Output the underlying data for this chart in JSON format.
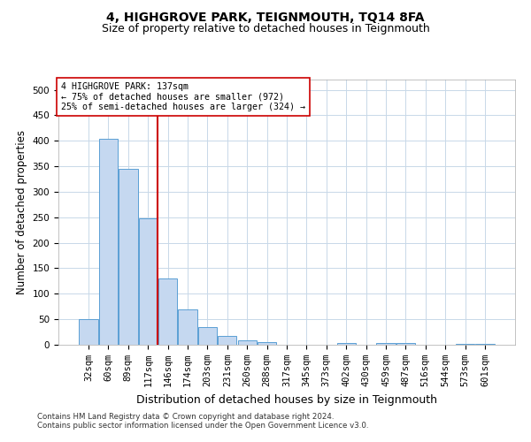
{
  "title": "4, HIGHGROVE PARK, TEIGNMOUTH, TQ14 8FA",
  "subtitle": "Size of property relative to detached houses in Teignmouth",
  "xlabel": "Distribution of detached houses by size in Teignmouth",
  "ylabel": "Number of detached properties",
  "footer_line1": "Contains HM Land Registry data © Crown copyright and database right 2024.",
  "footer_line2": "Contains public sector information licensed under the Open Government Licence v3.0.",
  "categories": [
    "32sqm",
    "60sqm",
    "89sqm",
    "117sqm",
    "146sqm",
    "174sqm",
    "203sqm",
    "231sqm",
    "260sqm",
    "288sqm",
    "317sqm",
    "345sqm",
    "373sqm",
    "402sqm",
    "430sqm",
    "459sqm",
    "487sqm",
    "516sqm",
    "544sqm",
    "573sqm",
    "601sqm"
  ],
  "values": [
    50,
    403,
    345,
    248,
    130,
    70,
    35,
    17,
    8,
    5,
    0,
    0,
    0,
    3,
    0,
    4,
    4,
    0,
    0,
    2,
    2
  ],
  "bar_color": "#c5d8f0",
  "bar_edge_color": "#5a9fd4",
  "vline_index": 4,
  "vline_color": "#cc0000",
  "annotation_line1": "4 HIGHGROVE PARK: 137sqm",
  "annotation_line2": "← 75% of detached houses are smaller (972)",
  "annotation_line3": "25% of semi-detached houses are larger (324) →",
  "annotation_box_color": "#ffffff",
  "annotation_box_edge_color": "#cc0000",
  "ylim": [
    0,
    520
  ],
  "yticks": [
    0,
    50,
    100,
    150,
    200,
    250,
    300,
    350,
    400,
    450,
    500
  ],
  "title_fontsize": 10,
  "subtitle_fontsize": 9,
  "xlabel_fontsize": 9,
  "ylabel_fontsize": 8.5,
  "background_color": "#ffffff",
  "grid_color": "#c8d8e8",
  "tick_label_fontsize": 7.5
}
